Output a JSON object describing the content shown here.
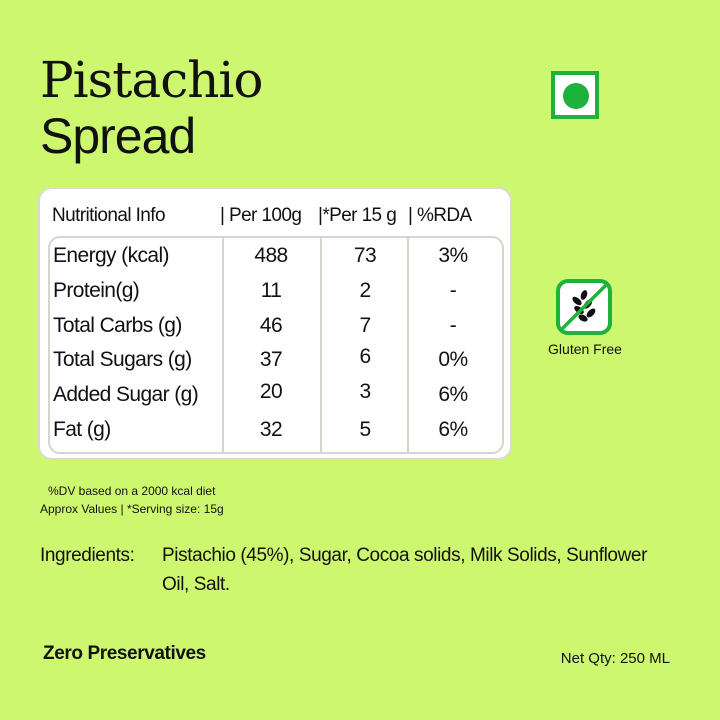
{
  "product": {
    "title_line1": "Pistachio",
    "title_line2": "Spread"
  },
  "badges": {
    "veg_icon": "veg-mark-icon",
    "gluten_icon": "no-wheat-icon",
    "gluten_label": "Gluten Free",
    "accent_color": "#1cb23b"
  },
  "nutrition": {
    "headers": [
      "Nutritional Info",
      "| Per 100g",
      "|*Per 15 g",
      "| %RDA"
    ],
    "rows": [
      {
        "name": "Energy (kcal)",
        "per100": "488",
        "per15": "73",
        "rda": "3%"
      },
      {
        "name": "Protein(g)",
        "per100": "11",
        "per15": "2",
        "rda": "-"
      },
      {
        "name": "Total Carbs (g)",
        "per100": "46",
        "per15": "7",
        "rda": "-"
      },
      {
        "name": "Total Sugars (g)",
        "per100": "37",
        "per15": "6",
        "rda": "0%"
      },
      {
        "name": "Added Sugar (g)",
        "per100": "20",
        "per15": "3",
        "rda": "6%"
      },
      {
        "name": "Fat (g)",
        "per100": "32",
        "per15": "5",
        "rda": "6%"
      }
    ]
  },
  "notes": {
    "line1": "%DV based on a 2000 kcal diet",
    "line2": "Approx Values | *Serving size: 15g"
  },
  "ingredients": {
    "label": "Ingredients:",
    "text": "Pistachio (45%), Sugar, Cocoa solids, Milk Solids, Sunflower Oil, Salt."
  },
  "footer": {
    "claim": "Zero Preservatives",
    "net_qty": "Net Qty: 250 ML"
  },
  "background_color": "#cdf76f"
}
